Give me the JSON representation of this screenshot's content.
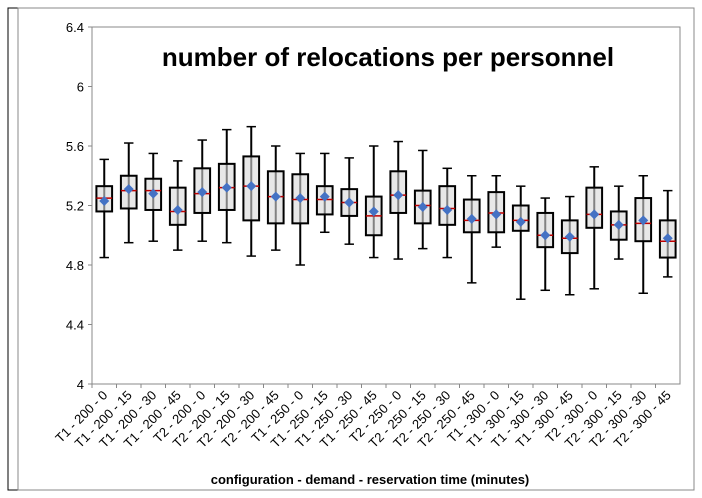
{
  "chart_data": {
    "type": "box",
    "title": "number of relocations per personnel",
    "x_label": "configuration - demand - reservation time (minutes)",
    "categories": [
      "T1 - 200 - 0",
      "T1 - 200 - 15",
      "T1 - 200 - 30",
      "T1 - 200 - 45",
      "T2 - 200 - 0",
      "T2 - 200 - 15",
      "T2 - 200 - 30",
      "T2 - 200 - 45",
      "T1 - 250 - 0",
      "T1 - 250 - 15",
      "T1 - 250 - 30",
      "T1 - 250 - 45",
      "T2 - 250 - 0",
      "T2 - 250 - 15",
      "T2 - 250 - 30",
      "T2 - 250 - 45",
      "T1 - 300 - 0",
      "T1 - 300 - 15",
      "T1 - 300 - 30",
      "T1 - 300 - 45",
      "T2 - 300 - 0",
      "T2 - 300 - 15",
      "T2 - 300 - 30",
      "T2 - 300 - 45"
    ],
    "low": [
      4.85,
      4.95,
      4.96,
      4.9,
      4.96,
      4.95,
      4.86,
      4.9,
      4.8,
      5.02,
      4.94,
      4.85,
      4.84,
      4.91,
      4.85,
      4.68,
      4.92,
      4.57,
      4.63,
      4.6,
      4.64,
      4.84,
      4.61,
      4.72
    ],
    "q1": [
      5.16,
      5.18,
      5.17,
      5.07,
      5.15,
      5.17,
      5.1,
      5.08,
      5.08,
      5.14,
      5.13,
      5.0,
      5.15,
      5.08,
      5.07,
      5.02,
      5.02,
      5.03,
      4.92,
      4.88,
      5.05,
      4.97,
      4.96,
      4.85
    ],
    "median": [
      5.25,
      5.3,
      5.3,
      5.16,
      5.28,
      5.32,
      5.33,
      5.26,
      5.24,
      5.24,
      5.22,
      5.13,
      5.27,
      5.2,
      5.18,
      5.1,
      5.15,
      5.1,
      5.0,
      4.98,
      5.14,
      5.07,
      5.08,
      4.96
    ],
    "q3": [
      5.33,
      5.4,
      5.38,
      5.32,
      5.45,
      5.48,
      5.53,
      5.43,
      5.41,
      5.33,
      5.31,
      5.26,
      5.43,
      5.3,
      5.33,
      5.24,
      5.29,
      5.2,
      5.15,
      5.1,
      5.32,
      5.16,
      5.25,
      5.1
    ],
    "high": [
      5.51,
      5.62,
      5.55,
      5.5,
      5.64,
      5.71,
      5.73,
      5.6,
      5.55,
      5.55,
      5.52,
      5.6,
      5.63,
      5.57,
      5.45,
      5.4,
      5.4,
      5.33,
      5.25,
      5.26,
      5.46,
      5.33,
      5.4,
      5.3
    ],
    "mean": [
      5.23,
      5.31,
      5.28,
      5.17,
      5.29,
      5.32,
      5.33,
      5.26,
      5.25,
      5.26,
      5.22,
      5.16,
      5.27,
      5.19,
      5.17,
      5.11,
      5.14,
      5.09,
      5.0,
      4.99,
      5.14,
      5.07,
      5.1,
      4.98
    ],
    "box_color": "#d9d9d9",
    "mean_color": "#4472c4",
    "ylim": [
      4,
      6.4
    ],
    "yticks": [
      4,
      4.4,
      4.8,
      5.2,
      5.6,
      6,
      6.4
    ],
    "grid": false
  }
}
